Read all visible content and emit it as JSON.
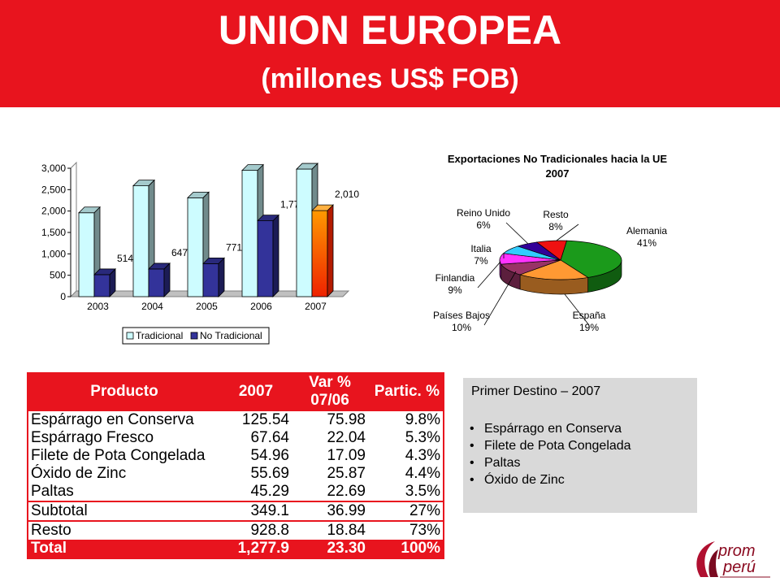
{
  "header": {
    "title": "UNION EUROPEA",
    "subtitle": "(millones US$ FOB)"
  },
  "chart_data": [
    {
      "type": "bar",
      "categories": [
        "2003",
        "2004",
        "2005",
        "2006",
        "2007"
      ],
      "series": [
        {
          "name": "Tradicional",
          "values": [
            1960,
            2590,
            2310,
            2950,
            2980
          ],
          "color": "#cdfcff"
        },
        {
          "name": "No Tradicional",
          "values": [
            514,
            647,
            771,
            1773,
            2010
          ],
          "color": "#33339a"
        }
      ],
      "data_labels": [
        "514",
        "647",
        "771",
        "1,773",
        "2,010"
      ],
      "y_ticks": [
        "0",
        "500",
        "1,000",
        "1,500",
        "2,000",
        "2,500",
        "3,000"
      ],
      "ylim": [
        0,
        3000
      ],
      "legend_position": "bottom",
      "highlight_color": "#ff7f00"
    },
    {
      "type": "pie",
      "title": "Exportaciones No Tradicionales hacia la UE",
      "subtitle": "2007",
      "slices": [
        {
          "label": "Alemania",
          "value": 41,
          "text": "41%",
          "color": "#1b9a1b"
        },
        {
          "label": "España",
          "value": 19,
          "text": "19%",
          "color": "#ff9933"
        },
        {
          "label": "Países Bajos",
          "value": 10,
          "text": "10%",
          "color": "#993366"
        },
        {
          "label": "Finlandia",
          "value": 9,
          "text": "9%",
          "color": "#ff33ff"
        },
        {
          "label": "Italia",
          "value": 7,
          "text": "7%",
          "color": "#33ccff"
        },
        {
          "label": "Reino Unido",
          "value": 6,
          "text": "6%",
          "color": "#330099"
        },
        {
          "label": "Resto",
          "value": 8,
          "text": "8%",
          "color": "#ee1111"
        }
      ]
    }
  ],
  "table": {
    "headers": [
      "Producto",
      "2007",
      "Var %",
      "07/06",
      "Partic. %"
    ],
    "rows": [
      {
        "producto": "Espárrago en Conserva",
        "v2007": "125.54",
        "var": "75.98",
        "partic": "9.8%"
      },
      {
        "producto": "Espárrago Fresco",
        "v2007": "67.64",
        "var": "22.04",
        "partic": "5.3%"
      },
      {
        "producto": "Filete de Pota Congelada",
        "v2007": "54.96",
        "var": "17.09",
        "partic": "4.3%"
      },
      {
        "producto": "Óxido de Zinc",
        "v2007": "55.69",
        "var": "25.87",
        "partic": "4.4%"
      },
      {
        "producto": "Paltas",
        "v2007": "45.29",
        "var": "22.69",
        "partic": "3.5%"
      }
    ],
    "subtotal": {
      "producto": "Subtotal",
      "v2007": "349.1",
      "var": "36.99",
      "partic": "27%"
    },
    "resto": {
      "producto": "Resto",
      "v2007": "928.8",
      "var": "18.84",
      "partic": "73%"
    },
    "total": {
      "producto": "Total",
      "v2007": "1,277.9",
      "var": "23.30",
      "partic": "100%"
    }
  },
  "infobox": {
    "heading": "Primer Destino – 2007",
    "items": [
      "Espárrago en Conserva",
      "Filete de Pota Congelada",
      "Paltas",
      "Óxido de Zinc"
    ]
  },
  "logo": {
    "line1": "prom",
    "line2": "perú"
  }
}
